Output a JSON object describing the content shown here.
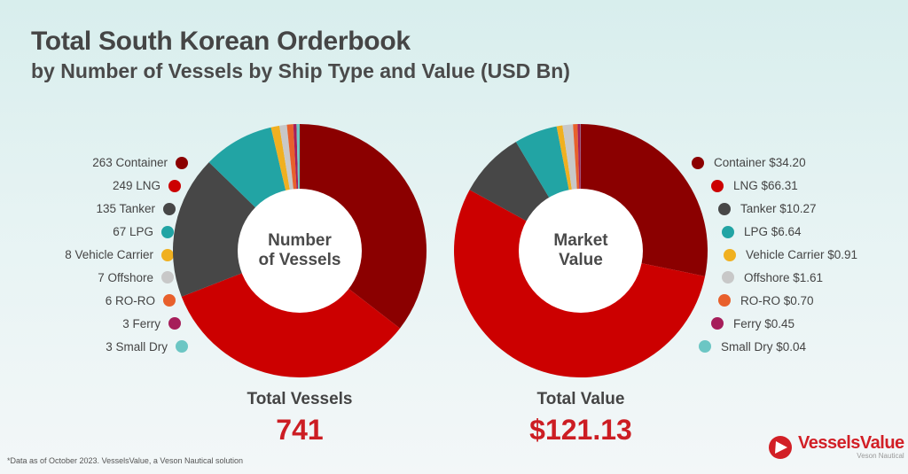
{
  "header": {
    "title": "Total South Korean Orderbook",
    "subtitle": "by Number of Vessels by Ship Type and Value (USD Bn)"
  },
  "colors": {
    "container": "#8b0000",
    "lng": "#cc0000",
    "tanker": "#474747",
    "lpg": "#22a4a4",
    "vehicle_carrier": "#f0b020",
    "offshore": "#c8c8c8",
    "roro": "#e8602c",
    "ferry": "#a61e5a",
    "small_dry": "#6cc6c4",
    "accent": "#cc1d23"
  },
  "left_legend": [
    {
      "label": "263 Container",
      "color": "#8b0000"
    },
    {
      "label": "249 LNG",
      "color": "#cc0000"
    },
    {
      "label": "135 Tanker",
      "color": "#474747"
    },
    {
      "label": "67 LPG",
      "color": "#22a4a4"
    },
    {
      "label": "8 Vehicle Carrier",
      "color": "#f0b020"
    },
    {
      "label": "7 Offshore",
      "color": "#c8c8c8"
    },
    {
      "label": "6 RO-RO",
      "color": "#e8602c"
    },
    {
      "label": "3 Ferry",
      "color": "#a61e5a"
    },
    {
      "label": "3 Small Dry",
      "color": "#6cc6c4"
    }
  ],
  "right_legend": [
    {
      "label": "Container $34.20",
      "color": "#8b0000"
    },
    {
      "label": "LNG $66.31",
      "color": "#cc0000"
    },
    {
      "label": "Tanker $10.27",
      "color": "#474747"
    },
    {
      "label": "LPG $6.64",
      "color": "#22a4a4"
    },
    {
      "label": "Vehicle Carrier $0.91",
      "color": "#f0b020"
    },
    {
      "label": "Offshore $1.61",
      "color": "#c8c8c8"
    },
    {
      "label": "RO-RO $0.70",
      "color": "#e8602c"
    },
    {
      "label": "Ferry $0.45",
      "color": "#a61e5a"
    },
    {
      "label": "Small Dry $0.04",
      "color": "#6cc6c4"
    }
  ],
  "left_chart": {
    "center_line1": "Number",
    "center_line2": "of Vessels",
    "total_label": "Total Vessels",
    "total_value": "741"
  },
  "right_chart": {
    "center_line1": "Market",
    "center_line2": "Value",
    "total_label": "Total Value",
    "total_value": "$121.13"
  },
  "footnote": "*Data as of October 2023. VesselsValue, a Veson Nautical solution",
  "logo": {
    "name": "VesselsValue",
    "sub": "Veson Nautical"
  },
  "chart_data": [
    {
      "type": "pie",
      "title": "Number of Vessels",
      "categories": [
        "Container",
        "LNG",
        "Tanker",
        "LPG",
        "Vehicle Carrier",
        "Offshore",
        "RO-RO",
        "Ferry",
        "Small Dry"
      ],
      "values": [
        263,
        249,
        135,
        67,
        8,
        7,
        6,
        3,
        3
      ],
      "colors": [
        "#8b0000",
        "#cc0000",
        "#474747",
        "#22a4a4",
        "#f0b020",
        "#c8c8c8",
        "#e8602c",
        "#a61e5a",
        "#6cc6c4"
      ],
      "total_label": "Total Vessels",
      "total": 741,
      "donut": true,
      "legend_position": "left"
    },
    {
      "type": "pie",
      "title": "Market Value",
      "unit": "USD Bn",
      "categories": [
        "Container",
        "LNG",
        "Tanker",
        "LPG",
        "Vehicle Carrier",
        "Offshore",
        "RO-RO",
        "Ferry",
        "Small Dry"
      ],
      "values": [
        34.2,
        66.31,
        10.27,
        6.64,
        0.91,
        1.61,
        0.7,
        0.45,
        0.04
      ],
      "colors": [
        "#8b0000",
        "#cc0000",
        "#474747",
        "#22a4a4",
        "#f0b020",
        "#c8c8c8",
        "#e8602c",
        "#a61e5a",
        "#6cc6c4"
      ],
      "total_label": "Total Value",
      "total": 121.13,
      "donut": true,
      "legend_position": "right"
    }
  ]
}
